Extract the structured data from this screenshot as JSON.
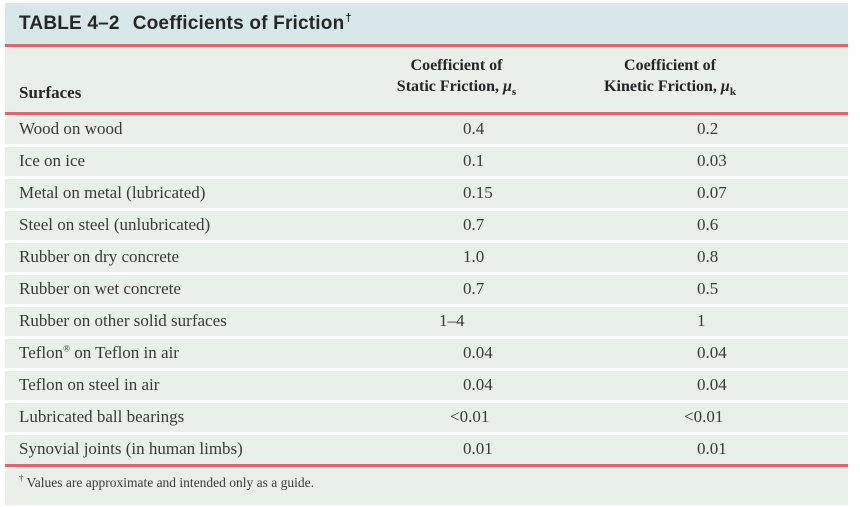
{
  "title": {
    "label": "TABLE 4–2",
    "subject": "Coefficients of Friction",
    "footnote_marker": "†"
  },
  "columns": {
    "surfaces": "Surfaces",
    "static": {
      "line1": "Coefficient of",
      "line2_prefix": "Static Friction, ",
      "symbol": "μ",
      "sub": "s"
    },
    "kinetic": {
      "line1": "Coefficient of",
      "line2_prefix": "Kinetic Friction, ",
      "symbol": "μ",
      "sub": "k"
    }
  },
  "rows": [
    {
      "surface": "Wood on wood",
      "surface_sup": "",
      "surface_rest": "",
      "static": "0.4",
      "kinetic": "0.2"
    },
    {
      "surface": "Ice on ice",
      "surface_sup": "",
      "surface_rest": "",
      "static": "0.1",
      "kinetic": "0.03"
    },
    {
      "surface": "Metal on metal (lubricated)",
      "surface_sup": "",
      "surface_rest": "",
      "static": "0.15",
      "kinetic": "0.07"
    },
    {
      "surface": "Steel on steel (unlubricated)",
      "surface_sup": "",
      "surface_rest": "",
      "static": "0.7",
      "kinetic": "0.6"
    },
    {
      "surface": "Rubber on dry concrete",
      "surface_sup": "",
      "surface_rest": "",
      "static": "1.0",
      "kinetic": "0.8"
    },
    {
      "surface": "Rubber on wet concrete",
      "surface_sup": "",
      "surface_rest": "",
      "static": "0.7",
      "kinetic": "0.5"
    },
    {
      "surface": "Rubber on other solid surfaces",
      "surface_sup": "",
      "surface_rest": "",
      "static": "1–4",
      "kinetic": "1"
    },
    {
      "surface": "Teflon",
      "surface_sup": "®",
      "surface_rest": " on Teflon in air",
      "static": "0.04",
      "kinetic": "0.04"
    },
    {
      "surface": "Teflon on steel in air",
      "surface_sup": "",
      "surface_rest": "",
      "static": "0.04",
      "kinetic": "0.04"
    },
    {
      "surface": "Lubricated ball bearings",
      "surface_sup": "",
      "surface_rest": "",
      "static": "<0.01",
      "kinetic": "<0.01"
    },
    {
      "surface": "Synovial joints (in human limbs)",
      "surface_sup": "",
      "surface_rest": "",
      "static": "0.01",
      "kinetic": "0.01"
    }
  ],
  "footnote": {
    "marker": "†",
    "text": "Values are approximate and intended only as a guide."
  },
  "chart_data": {
    "type": "table",
    "title": "TABLE 4–2 Coefficients of Friction",
    "columns": [
      "Surfaces",
      "Coefficient of Static Friction, μs",
      "Coefficient of Kinetic Friction, μk"
    ],
    "rows": [
      [
        "Wood on wood",
        "0.4",
        "0.2"
      ],
      [
        "Ice on ice",
        "0.1",
        "0.03"
      ],
      [
        "Metal on metal (lubricated)",
        "0.15",
        "0.07"
      ],
      [
        "Steel on steel (unlubricated)",
        "0.7",
        "0.6"
      ],
      [
        "Rubber on dry concrete",
        "1.0",
        "0.8"
      ],
      [
        "Rubber on wet concrete",
        "0.7",
        "0.5"
      ],
      [
        "Rubber on other solid surfaces",
        "1–4",
        "1"
      ],
      [
        "Teflon® on Teflon in air",
        "0.04",
        "0.04"
      ],
      [
        "Teflon on steel in air",
        "0.04",
        "0.04"
      ],
      [
        "Lubricated ball bearings",
        "<0.01",
        "<0.01"
      ],
      [
        "Synovial joints (in human limbs)",
        "0.01",
        "0.01"
      ]
    ],
    "footnote": "† Values are approximate and intended only as a guide."
  },
  "colors": {
    "title_bg": "#d8e8ea",
    "section_bg": "#e9efe9",
    "rule_red": "#e2636c",
    "gap_white": "#fbfdfb",
    "text_dark": "#262626",
    "text_body": "#3a3a3a"
  }
}
